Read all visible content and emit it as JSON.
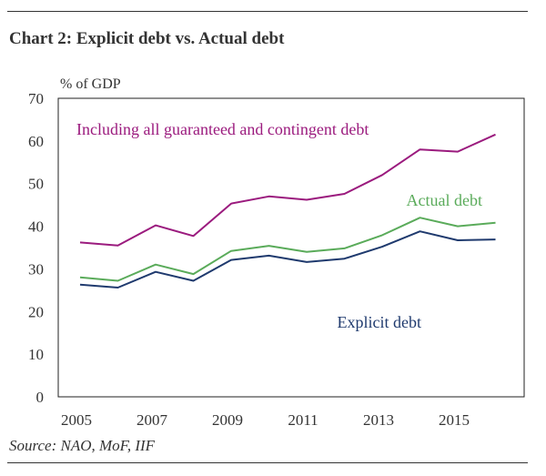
{
  "title": "Chart 2: Explicit debt vs. Actual debt",
  "source": "Source: NAO, MoF, IIF",
  "chart_data": {
    "type": "line",
    "ylabel": "% of GDP",
    "xlabel": "",
    "ylim": [
      0,
      70
    ],
    "yticks": [
      0,
      10,
      20,
      30,
      40,
      50,
      60,
      70
    ],
    "x": [
      2005,
      2006,
      2007,
      2008,
      2009,
      2010,
      2011,
      2012,
      2013,
      2014,
      2015,
      2016
    ],
    "xticks": [
      2005,
      2007,
      2009,
      2011,
      2013,
      2015
    ],
    "series": [
      {
        "name": "Including all guaranteed and contingent debt",
        "color": "#9b1b7e",
        "values": [
          36.2,
          35.5,
          40.2,
          37.7,
          45.3,
          47.0,
          46.2,
          47.6,
          52.0,
          58.0,
          57.5,
          61.5
        ]
      },
      {
        "name": "Actual debt",
        "color": "#5aab5a",
        "values": [
          28.0,
          27.2,
          31.0,
          28.8,
          34.2,
          35.4,
          34.0,
          34.8,
          37.9,
          42.0,
          40.0,
          40.8
        ]
      },
      {
        "name": "Explicit debt",
        "color": "#1f3a6e",
        "values": [
          26.3,
          25.6,
          29.3,
          27.2,
          32.1,
          33.1,
          31.6,
          32.4,
          35.2,
          38.8,
          36.7,
          36.9
        ]
      }
    ]
  }
}
